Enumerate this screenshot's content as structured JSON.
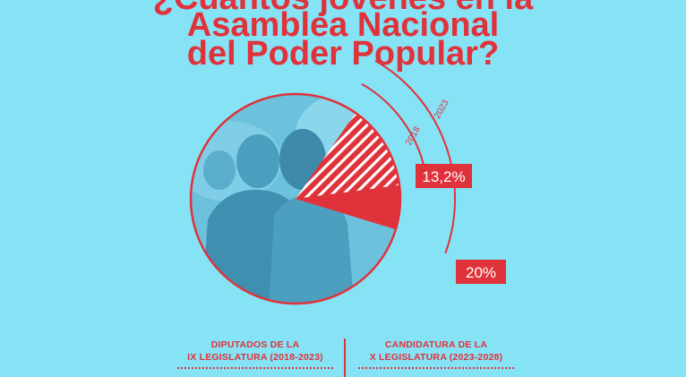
{
  "header": {
    "title_line_1": "¿Cuántos jóvenes en la",
    "title_line_2": "Asamblea Nacional",
    "title_line_3": "del Poder Popular?"
  },
  "colors": {
    "background": "#86e3f6",
    "accent": "#e0323a",
    "photo_tint": "#5fb3cf"
  },
  "chart_data": {
    "type": "pie",
    "title": "",
    "slices": [
      {
        "label": "2018",
        "value": 13.2,
        "value_label": "13,2%",
        "fill": "hatched"
      },
      {
        "label": "2023",
        "value": 20,
        "value_label": "20%",
        "fill": "solid"
      }
    ],
    "legend": "none"
  },
  "footer": {
    "left_caption_line_1": "DIPUTADOS DE LA",
    "left_caption_line_2": "IX LEGISLATURA (2018-2023)",
    "right_caption_line_1": "CANDIDATURA DE LA",
    "right_caption_line_2": "X LEGISLATURA (2023-2028)"
  }
}
